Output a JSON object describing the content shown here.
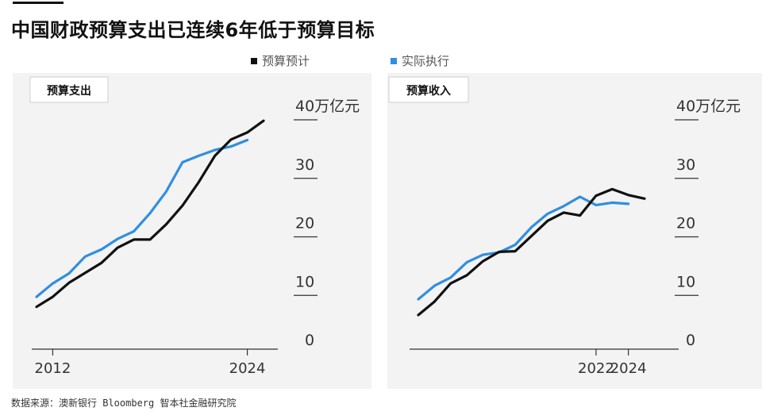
{
  "title": "中国财政预算支出已连续6年低于预算目标",
  "legend": [
    {
      "label": "预算预计",
      "color": "#111111"
    },
    {
      "label": "实际执行",
      "color": "#2f8fe0"
    }
  ],
  "source": "数据来源：澳新银行 Bloomberg 智本社金融研究院",
  "chart_data": [
    {
      "type": "line",
      "title": "预算支出",
      "unit": "万亿元",
      "ylim": [
        0,
        40
      ],
      "yticks": [
        0,
        10,
        20,
        30,
        40
      ],
      "ytick_labels": [
        "0",
        "10",
        "20",
        "30",
        "40万亿元"
      ],
      "xticks": [
        2012,
        2024
      ],
      "series": [
        {
          "name": "预算预计",
          "color": "#111111",
          "x": [
            2011,
            2012,
            2013,
            2014,
            2015,
            2016,
            2017,
            2018,
            2019,
            2020,
            2021,
            2022,
            2023,
            2024,
            2025
          ],
          "values": [
            7.5,
            9.2,
            11.6,
            13.3,
            15.0,
            17.6,
            19.0,
            19.0,
            21.6,
            24.8,
            28.8,
            33.3,
            36.1,
            37.3,
            39.3
          ]
        },
        {
          "name": "实际执行",
          "color": "#2f8fe0",
          "x": [
            2011,
            2012,
            2013,
            2014,
            2015,
            2016,
            2017,
            2018,
            2019,
            2020,
            2021,
            2022,
            2023,
            2024
          ],
          "values": [
            9.2,
            11.5,
            13.2,
            16.1,
            17.3,
            19.1,
            20.4,
            23.5,
            27.2,
            32.2,
            33.3,
            34.3,
            34.9,
            36.0
          ]
        }
      ]
    },
    {
      "type": "line",
      "title": "预算收入",
      "unit": "万亿元",
      "ylim": [
        0,
        40
      ],
      "yticks": [
        0,
        10,
        20,
        30,
        40
      ],
      "ytick_labels": [
        "0",
        "10",
        "20",
        "30",
        "40万亿元"
      ],
      "xticks": [
        2022,
        2024
      ],
      "series": [
        {
          "name": "预算预计",
          "color": "#111111",
          "x": [
            2011,
            2012,
            2013,
            2014,
            2015,
            2016,
            2017,
            2018,
            2019,
            2020,
            2021,
            2022,
            2023,
            2024,
            2025
          ],
          "values": [
            6.1,
            8.4,
            11.5,
            12.9,
            15.3,
            16.9,
            17.0,
            19.6,
            22.2,
            23.6,
            23.1,
            26.5,
            27.6,
            26.6,
            26.0
          ]
        },
        {
          "name": "实际执行",
          "color": "#2f8fe0",
          "x": [
            2011,
            2012,
            2013,
            2014,
            2015,
            2016,
            2017,
            2018,
            2019,
            2020,
            2021,
            2022,
            2023,
            2024
          ],
          "values": [
            8.8,
            11.1,
            12.5,
            15.1,
            16.4,
            16.8,
            18.1,
            21.1,
            23.4,
            24.7,
            26.3,
            24.9,
            25.3,
            25.1
          ]
        }
      ]
    }
  ]
}
